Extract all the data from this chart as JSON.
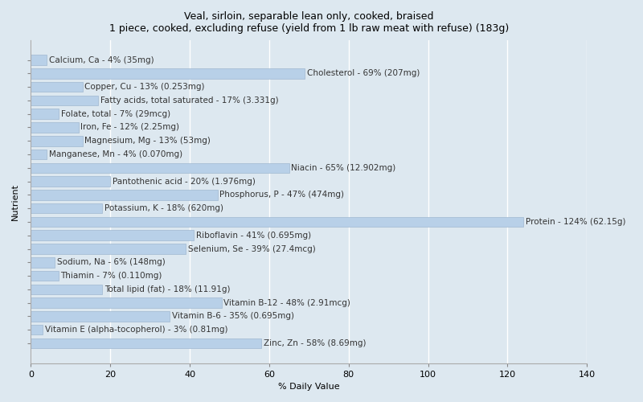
{
  "title": "Veal, sirloin, separable lean only, cooked, braised\n1 piece, cooked, excluding refuse (yield from 1 lb raw meat with refuse) (183g)",
  "xlabel": "% Daily Value",
  "ylabel": "Nutrient",
  "xlim": [
    0,
    140
  ],
  "xticks": [
    0,
    20,
    40,
    60,
    80,
    100,
    120,
    140
  ],
  "background_color": "#dde8f0",
  "plot_bg_color": "#dde8f0",
  "bar_color": "#b8d0e8",
  "bar_edge_color": "#a0b8d0",
  "nutrients": [
    {
      "label": "Calcium, Ca - 4% (35mg)",
      "value": 4
    },
    {
      "label": "Cholesterol - 69% (207mg)",
      "value": 69
    },
    {
      "label": "Copper, Cu - 13% (0.253mg)",
      "value": 13
    },
    {
      "label": "Fatty acids, total saturated - 17% (3.331g)",
      "value": 17
    },
    {
      "label": "Folate, total - 7% (29mcg)",
      "value": 7
    },
    {
      "label": "Iron, Fe - 12% (2.25mg)",
      "value": 12
    },
    {
      "label": "Magnesium, Mg - 13% (53mg)",
      "value": 13
    },
    {
      "label": "Manganese, Mn - 4% (0.070mg)",
      "value": 4
    },
    {
      "label": "Niacin - 65% (12.902mg)",
      "value": 65
    },
    {
      "label": "Pantothenic acid - 20% (1.976mg)",
      "value": 20
    },
    {
      "label": "Phosphorus, P - 47% (474mg)",
      "value": 47
    },
    {
      "label": "Potassium, K - 18% (620mg)",
      "value": 18
    },
    {
      "label": "Protein - 124% (62.15g)",
      "value": 124
    },
    {
      "label": "Riboflavin - 41% (0.695mg)",
      "value": 41
    },
    {
      "label": "Selenium, Se - 39% (27.4mcg)",
      "value": 39
    },
    {
      "label": "Sodium, Na - 6% (148mg)",
      "value": 6
    },
    {
      "label": "Thiamin - 7% (0.110mg)",
      "value": 7
    },
    {
      "label": "Total lipid (fat) - 18% (11.91g)",
      "value": 18
    },
    {
      "label": "Vitamin B-12 - 48% (2.91mcg)",
      "value": 48
    },
    {
      "label": "Vitamin B-6 - 35% (0.695mg)",
      "value": 35
    },
    {
      "label": "Vitamin E (alpha-tocopherol) - 3% (0.81mg)",
      "value": 3
    },
    {
      "label": "Zinc, Zn - 58% (8.69mg)",
      "value": 58
    }
  ],
  "label_fontsize": 7.5,
  "title_fontsize": 9,
  "tick_label_fontsize": 8
}
